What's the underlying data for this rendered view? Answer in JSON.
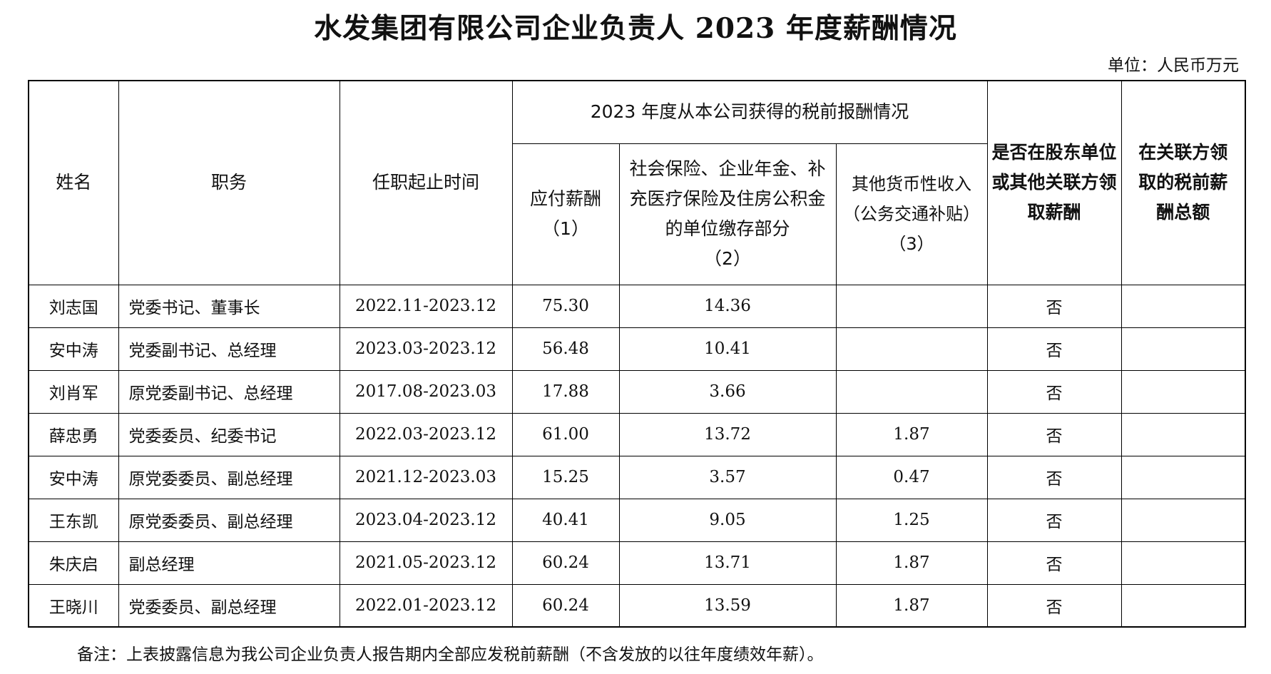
{
  "title": "水发集团有限公司企业负责人 2023 年度薪酬情况",
  "unit": "单位：人民币万元",
  "headers": {
    "name": "姓名",
    "position": "职务",
    "term": "任职起止时间",
    "group": "2023 年度从本公司获得的税前报酬情况",
    "salary": "应付薪酬",
    "salary_no": "（1）",
    "insurance": "社会保险、企业年金、补充医疗保险及住房公积金的单位缴存部分",
    "insurance_no": "（2）",
    "other": "其他货币性收入（公务交通补贴）",
    "other_no": "（3）",
    "shareholder": "是否在股东单位或其他关联方领取薪酬",
    "related": "在关联方领取的税前薪酬总额"
  },
  "rows": [
    {
      "name": "刘志国",
      "position": "党委书记、董事长",
      "term": "2022.11-2023.12",
      "salary": "75.30",
      "insurance": "14.36",
      "other": "",
      "shareholder": "否",
      "related": ""
    },
    {
      "name": "安中涛",
      "position": "党委副书记、总经理",
      "term": "2023.03-2023.12",
      "salary": "56.48",
      "insurance": "10.41",
      "other": "",
      "shareholder": "否",
      "related": ""
    },
    {
      "name": "刘肖军",
      "position": "原党委副书记、总经理",
      "term": "2017.08-2023.03",
      "salary": "17.88",
      "insurance": "3.66",
      "other": "",
      "shareholder": "否",
      "related": ""
    },
    {
      "name": "薛忠勇",
      "position": "党委委员、纪委书记",
      "term": "2022.03-2023.12",
      "salary": "61.00",
      "insurance": "13.72",
      "other": "1.87",
      "shareholder": "否",
      "related": ""
    },
    {
      "name": "安中涛",
      "position": "原党委委员、副总经理",
      "term": "2021.12-2023.03",
      "salary": "15.25",
      "insurance": "3.57",
      "other": "0.47",
      "shareholder": "否",
      "related": ""
    },
    {
      "name": "王东凯",
      "position": "原党委委员、副总经理",
      "term": "2023.04-2023.12",
      "salary": "40.41",
      "insurance": "9.05",
      "other": "1.25",
      "shareholder": "否",
      "related": ""
    },
    {
      "name": "朱庆启",
      "position": "副总经理",
      "term": "2021.05-2023.12",
      "salary": "60.24",
      "insurance": "13.71",
      "other": "1.87",
      "shareholder": "否",
      "related": ""
    },
    {
      "name": "王晓川",
      "position": "党委委员、副总经理",
      "term": "2022.01-2023.12",
      "salary": "60.24",
      "insurance": "13.59",
      "other": "1.87",
      "shareholder": "否",
      "related": ""
    }
  ],
  "note": "备注：上表披露信息为我公司企业负责人报告期内全部应发税前薪酬（不含发放的以往年度绩效年薪）。"
}
